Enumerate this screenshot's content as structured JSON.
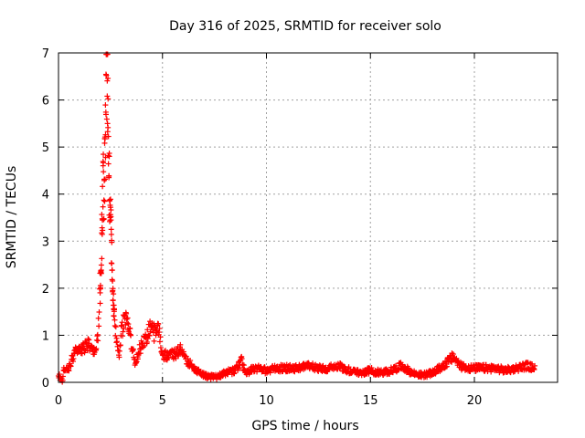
{
  "chart_data": {
    "type": "scatter",
    "title": "Day 316 of 2025, SRMTID for receiver solo",
    "xlabel": "GPS time / hours",
    "ylabel": "SRMTID / TECUs",
    "xlim": [
      0,
      24
    ],
    "ylim": [
      0,
      7
    ],
    "xticks": [
      0,
      5,
      10,
      15,
      20
    ],
    "yticks": [
      0,
      1,
      2,
      3,
      4,
      5,
      6,
      7
    ],
    "grid": true,
    "marker": "+",
    "color": "#ff0000",
    "series": [
      {
        "name": "SRMTID",
        "profile": [
          [
            0.0,
            0.15
          ],
          [
            0.1,
            0.08
          ],
          [
            0.2,
            0.02
          ],
          [
            0.25,
            0.3
          ],
          [
            0.5,
            0.3
          ],
          [
            0.7,
            0.55
          ],
          [
            0.9,
            0.7
          ],
          [
            1.2,
            0.75
          ],
          [
            1.4,
            0.8
          ],
          [
            1.6,
            0.75
          ],
          [
            1.8,
            0.65
          ],
          [
            1.9,
            1.0
          ],
          [
            2.0,
            2.0
          ],
          [
            2.05,
            2.5
          ],
          [
            2.1,
            3.5
          ],
          [
            2.15,
            4.4
          ],
          [
            2.2,
            4.0
          ],
          [
            2.25,
            5.5
          ],
          [
            2.3,
            6.95
          ],
          [
            2.35,
            6.5
          ],
          [
            2.4,
            5.2
          ],
          [
            2.45,
            4.0
          ],
          [
            2.5,
            3.6
          ],
          [
            2.55,
            2.8
          ],
          [
            2.6,
            2.0
          ],
          [
            2.7,
            1.2
          ],
          [
            2.8,
            0.9
          ],
          [
            2.9,
            0.5
          ],
          [
            3.0,
            1.0
          ],
          [
            3.2,
            1.4
          ],
          [
            3.4,
            1.2
          ],
          [
            3.5,
            0.8
          ],
          [
            3.7,
            0.4
          ],
          [
            3.9,
            0.7
          ],
          [
            4.1,
            0.9
          ],
          [
            4.3,
            1.0
          ],
          [
            4.5,
            1.4
          ],
          [
            4.6,
            1.0
          ],
          [
            4.8,
            1.2
          ],
          [
            5.0,
            0.6
          ],
          [
            5.3,
            0.55
          ],
          [
            5.6,
            0.6
          ],
          [
            5.9,
            0.7
          ],
          [
            6.1,
            0.5
          ],
          [
            6.3,
            0.4
          ],
          [
            6.6,
            0.25
          ],
          [
            7.0,
            0.15
          ],
          [
            7.5,
            0.1
          ],
          [
            8.0,
            0.2
          ],
          [
            8.5,
            0.25
          ],
          [
            8.8,
            0.45
          ],
          [
            9.0,
            0.2
          ],
          [
            9.5,
            0.3
          ],
          [
            10.0,
            0.25
          ],
          [
            10.5,
            0.3
          ],
          [
            11.0,
            0.3
          ],
          [
            11.5,
            0.3
          ],
          [
            12.0,
            0.35
          ],
          [
            12.5,
            0.3
          ],
          [
            13.0,
            0.3
          ],
          [
            13.5,
            0.35
          ],
          [
            14.0,
            0.25
          ],
          [
            14.5,
            0.2
          ],
          [
            15.0,
            0.25
          ],
          [
            15.5,
            0.2
          ],
          [
            16.0,
            0.25
          ],
          [
            16.5,
            0.35
          ],
          [
            17.0,
            0.2
          ],
          [
            17.5,
            0.15
          ],
          [
            18.0,
            0.2
          ],
          [
            18.5,
            0.35
          ],
          [
            19.0,
            0.55
          ],
          [
            19.3,
            0.35
          ],
          [
            19.8,
            0.3
          ],
          [
            20.3,
            0.3
          ],
          [
            21.0,
            0.3
          ],
          [
            21.5,
            0.25
          ],
          [
            22.0,
            0.3
          ],
          [
            22.5,
            0.35
          ],
          [
            22.9,
            0.3
          ]
        ]
      }
    ]
  }
}
